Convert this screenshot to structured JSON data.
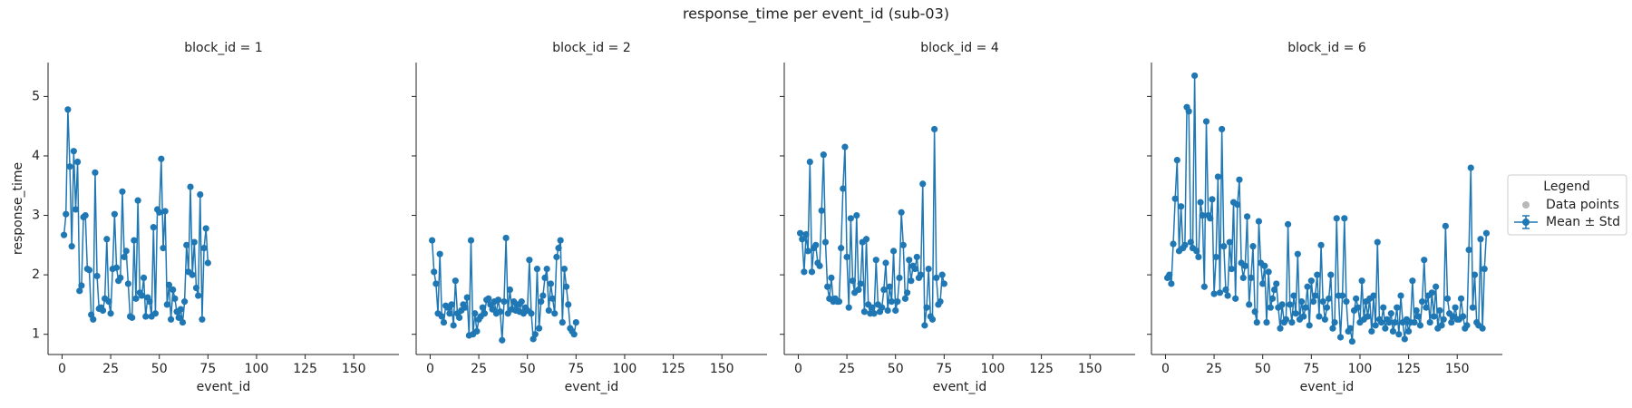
{
  "figure": {
    "title": "response_time per event_id (sub-03)",
    "legend": {
      "title": "Legend",
      "entries": [
        {
          "label": "Data points",
          "color": "#b8b8b8"
        },
        {
          "label": "Mean ± Std",
          "color": "#1f77b4"
        }
      ]
    }
  },
  "chart_data": [
    {
      "type": "line",
      "title": "block_id = 1",
      "xlabel": "event_id",
      "ylabel": "response_time",
      "x": [
        1,
        2,
        3,
        4,
        5,
        6,
        7,
        8,
        9,
        10,
        11,
        12,
        13,
        14,
        15,
        16,
        17,
        18,
        19,
        20,
        21,
        22,
        23,
        24,
        25,
        26,
        27,
        28,
        29,
        30,
        31,
        32,
        33,
        34,
        35,
        36,
        37,
        38,
        39,
        40,
        41,
        42,
        43,
        44,
        45,
        46,
        47,
        48,
        49,
        50,
        51,
        52,
        53,
        54,
        55,
        56,
        57,
        58,
        59,
        60,
        61,
        62,
        63,
        64,
        65,
        66,
        67,
        68,
        69,
        70,
        71,
        72,
        73,
        74,
        75
      ],
      "series": [
        {
          "color": "#1f77b4",
          "values": [
            2.67,
            3.02,
            4.78,
            3.82,
            2.48,
            4.08,
            3.1,
            3.9,
            1.73,
            1.82,
            2.97,
            3.0,
            2.1,
            2.08,
            1.33,
            1.25,
            3.72,
            1.98,
            1.43,
            1.45,
            1.4,
            1.6,
            2.6,
            1.55,
            1.35,
            2.1,
            3.02,
            2.12,
            1.9,
            1.95,
            3.4,
            2.3,
            2.4,
            1.85,
            1.3,
            1.28,
            2.58,
            1.6,
            3.25,
            1.7,
            1.65,
            1.95,
            1.3,
            1.62,
            1.55,
            1.3,
            2.8,
            1.35,
            3.1,
            3.05,
            3.95,
            2.45,
            3.07,
            1.5,
            1.83,
            1.25,
            1.75,
            1.6,
            1.38,
            1.28,
            1.42,
            1.2,
            1.55,
            2.5,
            2.05,
            3.48,
            2.0,
            2.55,
            1.78,
            1.65,
            3.35,
            1.25,
            2.45,
            2.78,
            2.2
          ]
        }
      ],
      "xlim": [
        -7.2,
        173.2
      ],
      "ylim": [
        0.66,
        5.57
      ],
      "xticks": [
        0,
        25,
        50,
        75,
        100,
        125,
        150
      ],
      "yticks": [
        1,
        2,
        3,
        4,
        5
      ]
    },
    {
      "type": "line",
      "title": "block_id = 2",
      "xlabel": "event_id",
      "x": [
        1,
        2,
        3,
        4,
        5,
        6,
        7,
        8,
        9,
        10,
        11,
        12,
        13,
        14,
        15,
        16,
        17,
        18,
        19,
        20,
        21,
        22,
        23,
        24,
        25,
        26,
        27,
        28,
        29,
        30,
        31,
        32,
        33,
        34,
        35,
        36,
        37,
        38,
        39,
        40,
        41,
        42,
        43,
        44,
        45,
        46,
        47,
        48,
        49,
        50,
        51,
        52,
        53,
        54,
        55,
        56,
        57,
        58,
        59,
        60,
        61,
        62,
        63,
        64,
        65,
        66,
        67,
        68,
        69,
        70,
        71,
        72,
        73,
        74,
        75
      ],
      "series": [
        {
          "color": "#1f77b4",
          "values": [
            2.58,
            2.05,
            1.85,
            1.35,
            2.35,
            1.3,
            1.2,
            1.48,
            1.45,
            1.35,
            1.5,
            1.15,
            1.9,
            1.35,
            1.28,
            1.4,
            1.5,
            1.45,
            1.62,
            0.98,
            2.58,
            1.0,
            1.35,
            1.05,
            1.25,
            1.3,
            1.45,
            1.35,
            1.58,
            1.6,
            1.5,
            1.42,
            1.55,
            1.35,
            1.58,
            1.38,
            0.9,
            1.55,
            2.62,
            1.35,
            1.75,
            1.42,
            1.55,
            1.4,
            1.5,
            1.38,
            1.55,
            1.35,
            1.45,
            1.4,
            2.25,
            1.35,
            0.92,
            1.0,
            2.1,
            1.1,
            1.55,
            1.65,
            1.95,
            2.1,
            1.4,
            1.85,
            1.6,
            1.35,
            2.3,
            2.45,
            2.58,
            1.2,
            2.1,
            1.8,
            1.5,
            1.1,
            1.05,
            1.0,
            1.2
          ]
        }
      ],
      "xlim": [
        -7.2,
        173.2
      ],
      "ylim": [
        0.66,
        5.57
      ],
      "xticks": [
        0,
        25,
        50,
        75,
        100,
        125,
        150
      ],
      "yticks": [
        1,
        2,
        3,
        4,
        5
      ]
    },
    {
      "type": "line",
      "title": "block_id = 4",
      "xlabel": "event_id",
      "x": [
        1,
        2,
        3,
        4,
        5,
        6,
        7,
        8,
        9,
        10,
        11,
        12,
        13,
        14,
        15,
        16,
        17,
        18,
        19,
        20,
        21,
        22,
        23,
        24,
        25,
        26,
        27,
        28,
        29,
        30,
        31,
        32,
        33,
        34,
        35,
        36,
        37,
        38,
        39,
        40,
        41,
        42,
        43,
        44,
        45,
        46,
        47,
        48,
        49,
        50,
        51,
        52,
        53,
        54,
        55,
        56,
        57,
        58,
        59,
        60,
        61,
        62,
        63,
        64,
        65,
        66,
        67,
        68,
        69,
        70,
        71,
        72,
        73,
        74,
        75
      ],
      "series": [
        {
          "color": "#1f77b4",
          "values": [
            2.7,
            2.6,
            2.05,
            2.68,
            2.4,
            3.9,
            2.05,
            2.45,
            2.5,
            2.2,
            2.15,
            3.08,
            4.02,
            2.55,
            1.8,
            1.6,
            1.95,
            1.55,
            1.6,
            1.55,
            1.55,
            2.45,
            3.45,
            4.15,
            2.3,
            1.45,
            2.95,
            1.9,
            1.7,
            3.0,
            1.75,
            1.85,
            2.55,
            1.38,
            2.6,
            1.5,
            1.35,
            1.45,
            1.35,
            2.25,
            1.5,
            1.38,
            1.45,
            1.75,
            2.2,
            1.4,
            1.8,
            1.55,
            2.4,
            1.4,
            1.55,
            1.95,
            3.05,
            2.5,
            1.6,
            1.7,
            2.25,
            1.9,
            2.15,
            2.1,
            2.3,
            1.95,
            2.0,
            3.53,
            1.15,
            1.45,
            2.1,
            1.3,
            1.25,
            4.45,
            1.95,
            1.5,
            1.55,
            2.0,
            1.85
          ]
        }
      ],
      "xlim": [
        -7.2,
        173.2
      ],
      "ylim": [
        0.66,
        5.57
      ],
      "xticks": [
        0,
        25,
        50,
        75,
        100,
        125,
        150
      ],
      "yticks": [
        1,
        2,
        3,
        4,
        5
      ]
    },
    {
      "type": "line",
      "title": "block_id = 6",
      "xlabel": "event_id",
      "x": [
        1,
        2,
        3,
        4,
        5,
        6,
        7,
        8,
        9,
        10,
        11,
        12,
        13,
        14,
        15,
        16,
        17,
        18,
        19,
        20,
        21,
        22,
        23,
        24,
        25,
        26,
        27,
        28,
        29,
        30,
        31,
        32,
        33,
        34,
        35,
        36,
        37,
        38,
        39,
        40,
        41,
        42,
        43,
        44,
        45,
        46,
        47,
        48,
        49,
        50,
        51,
        52,
        53,
        54,
        55,
        56,
        57,
        58,
        59,
        60,
        61,
        62,
        63,
        64,
        65,
        66,
        67,
        68,
        69,
        70,
        71,
        72,
        73,
        74,
        75,
        76,
        77,
        78,
        79,
        80,
        81,
        82,
        83,
        84,
        85,
        86,
        87,
        88,
        89,
        90,
        91,
        92,
        93,
        94,
        95,
        96,
        97,
        98,
        99,
        100,
        101,
        102,
        103,
        104,
        105,
        106,
        107,
        108,
        109,
        110,
        111,
        112,
        113,
        114,
        115,
        116,
        117,
        118,
        119,
        120,
        121,
        122,
        123,
        124,
        125,
        126,
        127,
        128,
        129,
        130,
        131,
        132,
        133,
        134,
        135,
        136,
        137,
        138,
        139,
        140,
        141,
        142,
        143,
        144,
        145,
        146,
        147,
        148,
        149,
        150,
        151,
        152,
        153,
        154,
        155,
        156,
        157,
        158,
        159,
        160,
        161,
        162,
        163,
        164,
        165
      ],
      "series": [
        {
          "color": "#1f77b4",
          "values": [
            1.95,
            2.0,
            1.85,
            2.52,
            3.28,
            3.93,
            2.4,
            3.15,
            2.45,
            2.5,
            4.82,
            4.75,
            2.55,
            2.45,
            5.35,
            2.4,
            2.3,
            3.22,
            3.0,
            1.8,
            4.58,
            3.0,
            2.95,
            3.27,
            1.68,
            2.3,
            3.65,
            1.7,
            4.45,
            2.48,
            1.75,
            1.65,
            2.55,
            2.1,
            3.22,
            1.6,
            3.18,
            3.6,
            2.2,
            1.95,
            2.15,
            2.98,
            1.5,
            1.95,
            2.48,
            1.38,
            1.2,
            2.9,
            2.2,
            1.85,
            2.15,
            1.2,
            2.05,
            1.45,
            1.6,
            1.75,
            1.85,
            1.45,
            1.1,
            1.5,
            1.2,
            1.25,
            2.85,
            1.5,
            1.2,
            1.65,
            1.35,
            2.35,
            1.25,
            1.55,
            1.3,
            1.45,
            1.8,
            1.15,
            1.9,
            1.55,
            1.65,
            2.0,
            1.3,
            2.5,
            1.55,
            1.25,
            1.45,
            1.6,
            2.0,
            1.1,
            1.2,
            2.95,
            1.65,
            0.95,
            1.65,
            2.95,
            1.55,
            1.05,
            1.1,
            0.88,
            1.4,
            1.6,
            1.45,
            1.2,
            1.9,
            1.25,
            1.55,
            1.3,
            1.6,
            1.05,
            1.65,
            1.15,
            2.55,
            1.25,
            1.2,
            1.45,
            1.1,
            1.25,
            1.2,
            1.35,
            1.05,
            1.2,
            1.45,
            1.0,
            1.65,
            1.2,
            0.92,
            1.25,
            1.05,
            1.2,
            1.9,
            1.2,
            1.4,
            1.3,
            1.15,
            1.55,
            2.25,
            1.45,
            1.65,
            1.2,
            1.7,
            1.3,
            1.8,
            1.1,
            1.4,
            1.15,
            1.25,
            2.82,
            1.6,
            1.35,
            1.2,
            1.3,
            1.45,
            1.25,
            1.25,
            1.6,
            1.3,
            1.1,
            1.15,
            2.42,
            3.8,
            1.45,
            2.0,
            1.2,
            1.15,
            2.6,
            1.1,
            2.1,
            2.7
          ]
        }
      ],
      "xlim": [
        -7.2,
        173.2
      ],
      "ylim": [
        0.66,
        5.57
      ],
      "xticks": [
        0,
        25,
        50,
        75,
        100,
        125,
        150
      ],
      "yticks": [
        1,
        2,
        3,
        4,
        5
      ]
    }
  ]
}
